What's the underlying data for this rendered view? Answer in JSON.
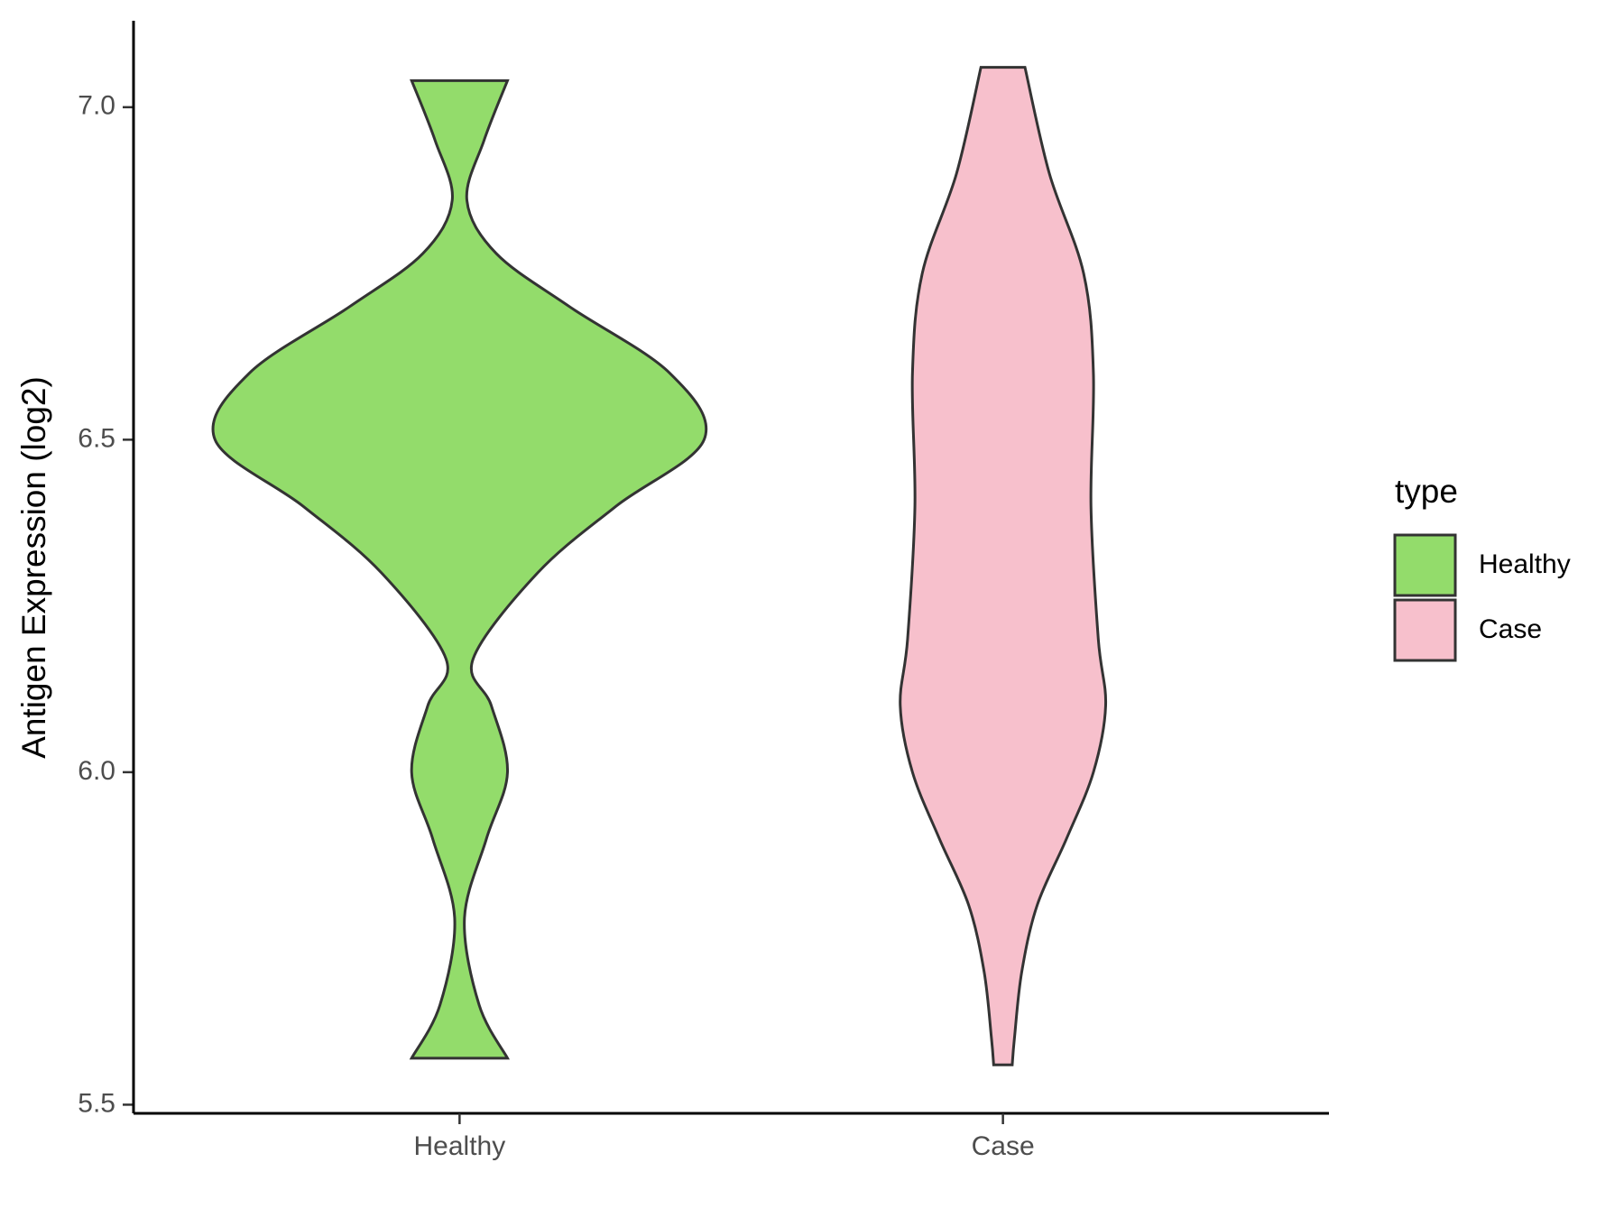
{
  "chart_data": {
    "type": "violin",
    "y_label": "Antigen Expression (log2)",
    "legend_title": "type",
    "categories": [
      "Healthy",
      "Case"
    ],
    "series": [
      {
        "name": "Healthy",
        "color": "#93DC6B",
        "y": [
          7.04,
          6.95,
          6.86,
          6.78,
          6.7,
          6.6,
          6.5,
          6.4,
          6.3,
          6.17,
          6.1,
          6.0,
          5.9,
          5.78,
          5.65,
          5.57
        ],
        "density": [
          0.196,
          0.1,
          0.03,
          0.15,
          0.45,
          0.86,
          1.0,
          0.64,
          0.32,
          0.055,
          0.13,
          0.196,
          0.11,
          0.02,
          0.08,
          0.196
        ]
      },
      {
        "name": "Case",
        "color": "#F7C0CC",
        "y": [
          7.06,
          6.9,
          6.75,
          6.6,
          6.4,
          6.2,
          6.1,
          6.0,
          5.9,
          5.8,
          5.7,
          5.6,
          5.56
        ],
        "density": [
          0.09,
          0.19,
          0.33,
          0.37,
          0.36,
          0.39,
          0.42,
          0.37,
          0.26,
          0.14,
          0.077,
          0.047,
          0.038
        ]
      }
    ],
    "ylim": [
      5.487,
      7.13
    ],
    "yticks": [
      5.5,
      {
        "value": 6.0,
        "label": "6.0"
      },
      6.5,
      {
        "value": 7.0,
        "label": "7.0"
      }
    ]
  }
}
